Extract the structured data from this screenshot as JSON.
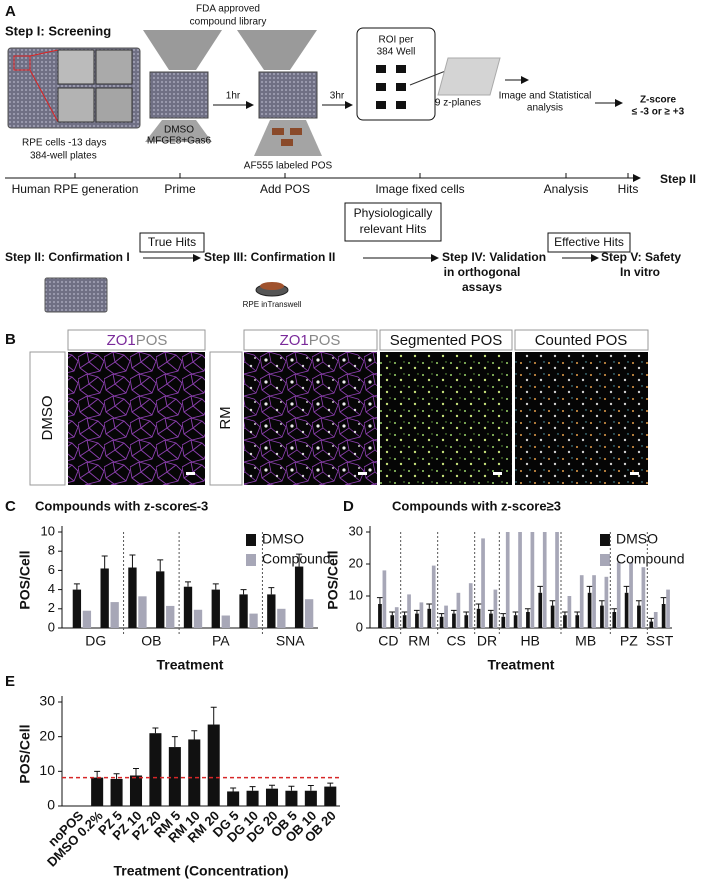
{
  "panel_a": {
    "label": "A",
    "step1": "Step I: Screening",
    "library": [
      "FDA approved",
      "compound library"
    ],
    "rpe": [
      "RPE cells -13 days",
      "384-well plates"
    ],
    "prime_reagents": [
      "DMSO",
      "MFGE8+Gas6"
    ],
    "t1": "1hr",
    "t2": "3hr",
    "pos": "AF555 labeled POS",
    "roi": [
      "ROI per",
      "384 Well"
    ],
    "zplanes": "9 z-planes",
    "analysis_text": [
      "Image and Statistical",
      "analysis"
    ],
    "zscore": [
      "Z-score",
      "≤ -3 or ≥ +3"
    ],
    "timeline": [
      "Human RPE generation",
      "Prime",
      "Add POS",
      "Image fixed cells",
      "Analysis",
      "Hits"
    ],
    "timeline_end": "Step II",
    "steps": [
      "Step II: Confirmation I",
      "Step III: Confirmation II",
      [
        "Step IV: Validation",
        "in orthogonal",
        "assays"
      ],
      [
        "Step V: Safety",
        "In vitro"
      ]
    ],
    "hits": [
      "True Hits",
      [
        "Physiologically",
        "relevant Hits"
      ],
      "Effective Hits"
    ],
    "transwell": "RPE inTranswell"
  },
  "panel_b": {
    "label": "B",
    "stain_a": "ZO1",
    "stain_b": "POS",
    "segmented": "Segmented POS",
    "counted": "Counted POS",
    "conditions": [
      "DMSO",
      "RM"
    ]
  },
  "panel_labels": [
    "C",
    "D",
    "E"
  ],
  "chart_data": [
    {
      "type": "bar",
      "title": "Compounds with z-score≤-3",
      "ylabel": "POS/Cell",
      "xlabel": "Treatment",
      "categories": [
        "DG",
        null,
        "OB",
        null,
        "PA",
        null,
        null,
        "SNA",
        null
      ],
      "series": [
        {
          "name": "DMSO",
          "color": "#111111",
          "values": [
            4.0,
            6.2,
            6.3,
            5.9,
            4.3,
            4.0,
            3.5,
            3.5,
            6.4
          ],
          "errors": [
            0.6,
            1.3,
            1.3,
            1.2,
            0.5,
            0.6,
            0.5,
            0.7,
            1.3
          ]
        },
        {
          "name": "Compound",
          "color": "#a7a7b7",
          "values": [
            1.8,
            2.7,
            3.3,
            2.3,
            1.9,
            1.3,
            1.5,
            2.0,
            3.0
          ]
        }
      ],
      "ylim": [
        0,
        10
      ],
      "yticks": [
        0,
        2,
        4,
        6,
        8,
        10
      ],
      "group_separators": true,
      "legend": "upper right"
    },
    {
      "type": "bar",
      "title": "Compounds with z-score≥3",
      "ylabel": "POS/Cell",
      "xlabel": "Treatment",
      "categories": [
        "CD",
        null,
        "RM",
        null,
        null,
        "CS",
        null,
        null,
        "DR",
        null,
        "HB",
        null,
        null,
        null,
        null,
        "MB",
        null,
        null,
        null,
        "PZ",
        null,
        null,
        "SST",
        null
      ],
      "series": [
        {
          "name": "DMSO",
          "color": "#111111",
          "values": [
            7.5,
            4,
            4,
            4.5,
            6,
            3.5,
            4.5,
            4,
            6,
            4.5,
            3.5,
            4,
            5,
            11,
            7,
            4,
            4,
            11,
            7,
            5,
            11,
            7,
            2,
            7.5
          ],
          "errors": [
            2,
            1,
            1,
            1,
            1.5,
            1,
            1,
            1,
            1.5,
            1,
            1,
            1,
            1,
            2,
            1.5,
            1,
            1,
            2,
            1.5,
            1,
            2,
            1.5,
            1,
            2
          ]
        },
        {
          "name": "Compound",
          "color": "#a7a7b7",
          "values": [
            18,
            6.5,
            10.5,
            8,
            19.5,
            7,
            11,
            14,
            28,
            12,
            30,
            30,
            30,
            30,
            30,
            10,
            16.5,
            16.5,
            16,
            20.5,
            20.5,
            19,
            5,
            12
          ]
        }
      ],
      "ylim": [
        0,
        30
      ],
      "yticks": [
        0,
        10,
        20,
        30
      ],
      "group_separators": true,
      "legend": "upper right"
    },
    {
      "type": "bar",
      "ylabel": "POS/Cell",
      "xlabel": "Treatment (Concentration)",
      "categories": [
        "noPOS",
        "DMSO 0.2%",
        "PZ 5",
        "PZ 10",
        "PZ 20",
        "RM 5",
        "RM 10",
        "RM 20",
        "DG 5",
        "DG 10",
        "DG 20",
        "OB 5",
        "OB 10",
        "OB 20"
      ],
      "values": [
        0,
        8.2,
        7.8,
        8.8,
        21,
        17,
        19.2,
        23.5,
        4.2,
        4.4,
        5,
        4.4,
        4.4,
        5.6
      ],
      "errors": [
        0,
        1.8,
        1.5,
        2,
        1.5,
        3,
        2.5,
        5,
        1,
        1.2,
        1,
        1.3,
        1.5,
        1
      ],
      "color": "#111111",
      "ylim": [
        0,
        30
      ],
      "yticks": [
        0,
        10,
        20,
        30
      ],
      "label_rotation": -45,
      "reference_line": {
        "value": 8.2,
        "color": "#d62728"
      }
    }
  ]
}
